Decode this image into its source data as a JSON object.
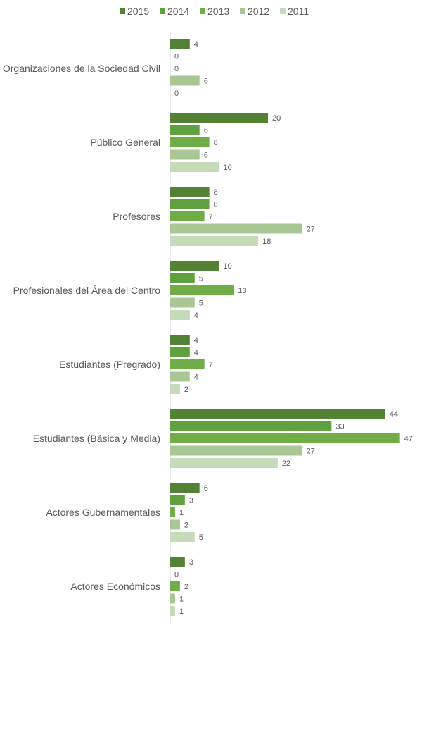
{
  "chart_data": {
    "type": "bar",
    "orientation": "horizontal",
    "title": "",
    "xlabel": "",
    "ylabel": "",
    "legend_position": "top",
    "grid": false,
    "xlim": [
      0,
      50
    ],
    "categories": [
      "Organizaciones de la Sociedad Civil",
      "Público General",
      "Profesores",
      "Profesionales del Área del Centro",
      "Estudiantes (Pregrado)",
      "Estudiantes (Básica y Media)",
      "Actores Gubernamentales",
      "Actores Económicos"
    ],
    "series": [
      {
        "name": "2015",
        "color": "#548235",
        "values": [
          4,
          20,
          8,
          10,
          4,
          44,
          6,
          3
        ]
      },
      {
        "name": "2014",
        "color": "#5fa13f",
        "values": [
          0,
          6,
          8,
          5,
          4,
          33,
          3,
          0
        ]
      },
      {
        "name": "2013",
        "color": "#70ad47",
        "values": [
          0,
          8,
          7,
          13,
          7,
          47,
          1,
          2
        ]
      },
      {
        "name": "2012",
        "color": "#a9c795",
        "values": [
          6,
          6,
          27,
          5,
          4,
          27,
          2,
          1
        ]
      },
      {
        "name": "2011",
        "color": "#c5dbb8",
        "values": [
          0,
          10,
          18,
          4,
          2,
          22,
          5,
          1
        ]
      }
    ]
  }
}
